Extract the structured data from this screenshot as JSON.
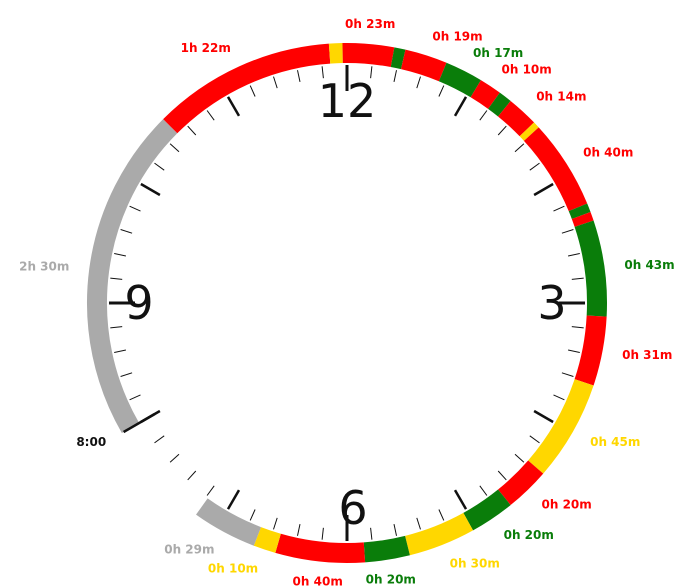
{
  "colors": {
    "green": "#0a7d0a",
    "red": "#ff0000",
    "yellow": "#ffd700",
    "gray": "#aaaaaa",
    "tick": "#111111"
  },
  "chart_data": {
    "type": "radial-timeline",
    "unit": "minutes",
    "clock_span_minutes": 720,
    "start_time": "8:00",
    "hour_numbers": [
      "12",
      "3",
      "6",
      "9"
    ],
    "segments": [
      {
        "category": "gray",
        "duration_min": 150,
        "label": "2h 30m"
      },
      {
        "category": "red",
        "duration_min": 82,
        "label": "1h 22m"
      },
      {
        "category": "yellow",
        "duration_min": 6,
        "label": ""
      },
      {
        "category": "red",
        "duration_min": 23,
        "label": "0h 23m"
      },
      {
        "category": "green",
        "duration_min": 5,
        "label": ""
      },
      {
        "category": "red",
        "duration_min": 19,
        "label": "0h 19m"
      },
      {
        "category": "green",
        "duration_min": 17,
        "label": "0h 17m"
      },
      {
        "category": "red",
        "duration_min": 10,
        "label": "0h 10m"
      },
      {
        "category": "green",
        "duration_min": 6,
        "label": ""
      },
      {
        "category": "red",
        "duration_min": 14,
        "label": "0h 14m"
      },
      {
        "category": "yellow",
        "duration_min": 3,
        "label": ""
      },
      {
        "category": "red",
        "duration_min": 40,
        "label": "0h 40m"
      },
      {
        "category": "green",
        "duration_min": 4,
        "label": ""
      },
      {
        "category": "red",
        "duration_min": 4,
        "label": ""
      },
      {
        "category": "green",
        "duration_min": 43,
        "label": "0h 43m"
      },
      {
        "category": "red",
        "duration_min": 31,
        "label": "0h 31m"
      },
      {
        "category": "yellow",
        "duration_min": 45,
        "label": "0h 45m"
      },
      {
        "category": "red",
        "duration_min": 20,
        "label": "0h 20m"
      },
      {
        "category": "green",
        "duration_min": 20,
        "label": "0h 20m"
      },
      {
        "category": "yellow",
        "duration_min": 30,
        "label": "0h 30m"
      },
      {
        "category": "green",
        "duration_min": 20,
        "label": "0h 20m"
      },
      {
        "category": "red",
        "duration_min": 40,
        "label": "0h 40m"
      },
      {
        "category": "yellow",
        "duration_min": 10,
        "label": "0h 10m"
      },
      {
        "category": "gray",
        "duration_min": 29,
        "label": "0h 29m"
      }
    ]
  }
}
